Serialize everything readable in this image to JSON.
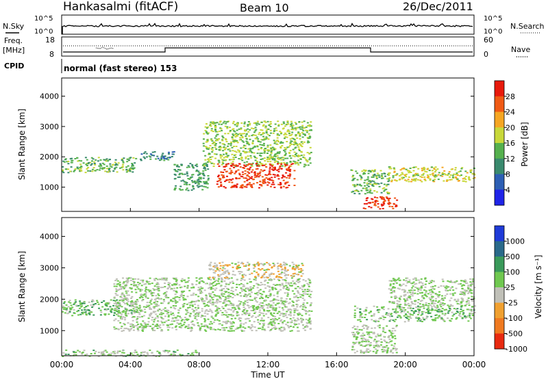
{
  "header": {
    "station": "Hankasalmi (fitACF)",
    "beam": "Beam 10",
    "date": "26/Dec/2011"
  },
  "noise_panel": {
    "left_label": "N.Sky",
    "right_label": "N.Search",
    "ticks": [
      "10^5",
      "10^0"
    ]
  },
  "freq_panel": {
    "left_label_line1": "Freq.",
    "left_label_line2": "[MHz]",
    "left_ticks": [
      "18",
      "8"
    ],
    "right_ticks": [
      "60",
      "0"
    ],
    "right_label": "Nave"
  },
  "cpid": {
    "label": "CPID",
    "value": "normal (fast stereo) 153"
  },
  "power_panel": {
    "ylabel": "Slant Range [km]",
    "yticks": [
      "1000",
      "2000",
      "3000",
      "4000"
    ],
    "colorbar_label": "Power [dB]",
    "colorbar_ticks": [
      "4",
      "8",
      "12",
      "16",
      "20",
      "24",
      "28"
    ],
    "colors": [
      "#1f24e8",
      "#2d5fb4",
      "#3a8a6e",
      "#55b04e",
      "#c8d83a",
      "#f5a623",
      "#f05a14",
      "#e81a0c"
    ]
  },
  "velocity_panel": {
    "ylabel": "Slant Range [km]",
    "yticks": [
      "1000",
      "2000",
      "3000",
      "4000"
    ],
    "colorbar_label": "Velocity [m s⁻¹]",
    "colorbar_ticks": [
      "1000",
      "500",
      "100",
      "25",
      "-25",
      "-100",
      "-500",
      "-1000"
    ],
    "colors": [
      "#1f3bd8",
      "#2a6a8a",
      "#3a9a5a",
      "#70c850",
      "#c0c0b8",
      "#f0a030",
      "#f07a20",
      "#e82a10"
    ]
  },
  "x_axis": {
    "ticks": [
      "00:00",
      "04:00",
      "08:00",
      "12:00",
      "16:00",
      "20:00",
      "00:00"
    ],
    "label": "Time UT"
  },
  "chart_data": {
    "type": "heatmap",
    "title": "Hankasalmi (fitACF)",
    "subtitle": "Beam 10",
    "date": "26/Dec/2011",
    "xlabel": "Time UT",
    "ylabel": "Slant Range [km]",
    "xlim": [
      0,
      24
    ],
    "ylim": [
      200,
      4600
    ],
    "panels": [
      {
        "name": "Power [dB]",
        "range": [
          0,
          32
        ],
        "regions": [
          {
            "t": [
              0.0,
              4.3
            ],
            "r": [
              1500,
              2000
            ],
            "value": 14
          },
          {
            "t": [
              4.5,
              6.5
            ],
            "r": [
              1900,
              2200
            ],
            "value": 10
          },
          {
            "t": [
              6.5,
              8.5
            ],
            "r": [
              900,
              1800
            ],
            "value": 12
          },
          {
            "t": [
              8.2,
              14.5
            ],
            "r": [
              1700,
              3200
            ],
            "value": 16
          },
          {
            "t": [
              9.0,
              13.5
            ],
            "r": [
              1000,
              1800
            ],
            "value": 28
          },
          {
            "t": [
              16.8,
              19.0
            ],
            "r": [
              800,
              1600
            ],
            "value": 14
          },
          {
            "t": [
              17.5,
              19.5
            ],
            "r": [
              300,
              700
            ],
            "value": 28
          },
          {
            "t": [
              19.0,
              24.0
            ],
            "r": [
              1200,
              1700
            ],
            "value": 18
          }
        ]
      },
      {
        "name": "Velocity [m s^-1]",
        "range": [
          -1000,
          1000
        ],
        "regions": [
          {
            "t": [
              0.0,
              4.3
            ],
            "r": [
              1500,
              2000
            ],
            "value": 150
          },
          {
            "t": [
              0.0,
              8.0
            ],
            "r": [
              200,
              400
            ],
            "value": 50
          },
          {
            "t": [
              3.0,
              14.5
            ],
            "r": [
              1000,
              2700
            ],
            "value": 0
          },
          {
            "t": [
              8.5,
              14.0
            ],
            "r": [
              2700,
              3200
            ],
            "value": -200
          },
          {
            "t": [
              17.0,
              24.0
            ],
            "r": [
              1300,
              1800
            ],
            "value": 120
          },
          {
            "t": [
              16.8,
              19.5
            ],
            "r": [
              300,
              1200
            ],
            "value": 0
          },
          {
            "t": [
              19.0,
              24.0
            ],
            "r": [
              1800,
              2700
            ],
            "value": 0
          }
        ]
      }
    ]
  }
}
